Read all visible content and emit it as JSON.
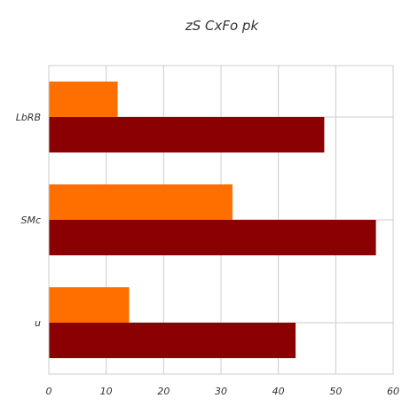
{
  "chart_data": {
    "type": "bar",
    "orientation": "horizontal",
    "title": "zS CxFo pk",
    "xlabel": "",
    "ylabel": "",
    "categories": [
      "LbRB",
      "SMc",
      "u"
    ],
    "series": [
      {
        "values": [
          12,
          32,
          14
        ],
        "color": "#ff6f00"
      },
      {
        "values": [
          48,
          57,
          43
        ],
        "color": "#8b0000"
      }
    ],
    "xlim": [
      0,
      60
    ],
    "xticks": [
      0,
      10,
      20,
      30,
      40,
      50,
      60
    ],
    "grid": true,
    "legend": "none"
  }
}
